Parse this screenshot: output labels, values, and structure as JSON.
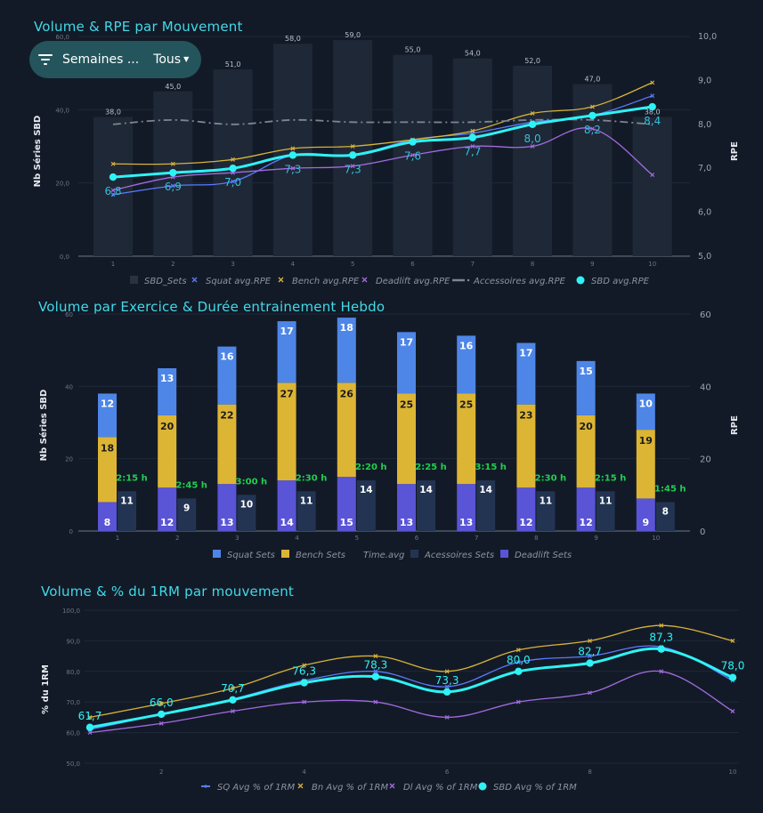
{
  "filter": {
    "label": "Semaines ...",
    "value": "Tous"
  },
  "chart_data": [
    {
      "id": "c1",
      "type": "bar+line",
      "title": "Volume & RPE par Mouvement",
      "ylabel_left": "Nb Séries SBD",
      "ylabel_right": "RPE",
      "ylim_left": [
        0,
        60
      ],
      "ylim_right": [
        5,
        10
      ],
      "yticks_left": [
        "0,0",
        "20,0",
        "40,0",
        "60,0"
      ],
      "yticks_right": [
        "5,0",
        "6,0",
        "7,0",
        "8,0",
        "9,0",
        "10,0"
      ],
      "categories": [
        "1",
        "2",
        "3",
        "4",
        "5",
        "6",
        "7",
        "8",
        "9",
        "10"
      ],
      "bars": {
        "name": "SBD_Sets",
        "values": [
          38,
          45,
          51,
          58,
          59,
          55,
          54,
          52,
          47,
          38
        ],
        "labels": [
          "38,0",
          "45,0",
          "51,0",
          "58,0",
          "59,0",
          "55,0",
          "54,0",
          "52,0",
          "47,0",
          "38,0"
        ]
      },
      "lines": [
        {
          "name": "Squat avg.RPE",
          "color": "#5b7bff",
          "values": [
            6.4,
            6.6,
            6.7,
            7.3,
            7.3,
            7.65,
            7.8,
            8.05,
            8.2,
            8.65
          ]
        },
        {
          "name": "Bench avg.RPE",
          "color": "#d7b43a",
          "values": [
            7.1,
            7.1,
            7.2,
            7.45,
            7.5,
            7.65,
            7.85,
            8.25,
            8.4,
            8.95
          ]
        },
        {
          "name": "Deadlift avg.RPE",
          "color": "#a26be0",
          "values": [
            6.5,
            6.8,
            6.9,
            7.0,
            7.05,
            7.3,
            7.5,
            7.5,
            7.9,
            6.85
          ]
        },
        {
          "name": "Accessoires avg.RPE",
          "color": "#7d8590",
          "values": [
            8.0,
            8.1,
            8.0,
            8.1,
            8.05,
            8.05,
            8.05,
            8.1,
            8.1,
            8.0
          ]
        },
        {
          "name": "SBD avg.RPE",
          "color": "#2ff2f5",
          "values": [
            6.8,
            6.9,
            7.0,
            7.3,
            7.3,
            7.6,
            7.7,
            8.0,
            8.2,
            8.4
          ],
          "labels": [
            "6,8",
            "6,9",
            "7,0",
            "7,3",
            "7,3",
            "7,6",
            "7,7",
            "8,0",
            "8,2",
            "8,4"
          ]
        }
      ]
    },
    {
      "id": "c2",
      "type": "stacked-bar",
      "title": "Volume par Exercice & Durée entrainement Hebdo",
      "ylabel_left": "Nb Séries SBD",
      "ylabel_right": "RPE",
      "ylim_left": [
        0,
        60
      ],
      "ylim_right": [
        0,
        60
      ],
      "yticks_left": [
        "0",
        "20",
        "40",
        "60"
      ],
      "yticks_right": [
        "0",
        "20",
        "40",
        "60"
      ],
      "categories": [
        "1",
        "2",
        "3",
        "4",
        "5",
        "6",
        "7",
        "8",
        "9",
        "10"
      ],
      "stacks": [
        {
          "name": "Deadlift Sets",
          "color": "#5a54d6",
          "values": [
            8,
            12,
            13,
            14,
            15,
            13,
            13,
            12,
            12,
            9
          ]
        },
        {
          "name": "Bench Sets",
          "color": "#ddb534",
          "values": [
            18,
            20,
            22,
            27,
            26,
            25,
            25,
            23,
            20,
            19
          ]
        },
        {
          "name": "Squat Sets",
          "color": "#4e86e8",
          "values": [
            12,
            13,
            16,
            17,
            18,
            17,
            16,
            17,
            15,
            10
          ]
        }
      ],
      "accessoires": {
        "name": "Acessoires Sets",
        "color": "#233453",
        "values": [
          11,
          9,
          10,
          11,
          14,
          14,
          14,
          11,
          11,
          8
        ]
      },
      "time": {
        "name": "Time.avg",
        "labels": [
          "2:15 h",
          "2:45 h",
          "3:00 h",
          "2:30 h",
          "2:20 h",
          "2:25 h",
          "3:15 h",
          "2:30 h",
          "2:15 h",
          "1:45 h"
        ]
      }
    },
    {
      "id": "c3",
      "type": "line",
      "title": "Volume & % du 1RM par mouvement",
      "ylabel": "% du 1RM",
      "ylim": [
        50,
        100
      ],
      "xlim": [
        1,
        10
      ],
      "yticks": [
        "50,0",
        "60,0",
        "70,0",
        "80,0",
        "90,0",
        "100,0"
      ],
      "xticks": [
        "2",
        "4",
        "6",
        "8",
        "10"
      ],
      "x": [
        1,
        2,
        3,
        4,
        5,
        6,
        7,
        8,
        9,
        10
      ],
      "series": [
        {
          "name": "SQ Avg % of 1RM",
          "color": "#5b7bff",
          "values": [
            61,
            66,
            71,
            77,
            80,
            75,
            83,
            85,
            88,
            77
          ]
        },
        {
          "name": "Bn Avg % of 1RM",
          "color": "#d7b43a",
          "values": [
            65,
            69.5,
            74.5,
            82,
            85,
            80,
            87,
            90,
            95,
            90
          ]
        },
        {
          "name": "Dl Avg % of 1RM",
          "color": "#a26be0",
          "values": [
            60,
            63,
            67,
            70,
            70,
            65,
            70,
            73,
            80,
            67
          ]
        },
        {
          "name": "SBD Avg % of 1RM",
          "color": "#2ff2f5",
          "values": [
            61.7,
            66.0,
            70.7,
            76.3,
            78.3,
            73.3,
            80.0,
            82.7,
            87.3,
            78.0
          ],
          "labels": [
            "61,7",
            "66,0",
            "70,7",
            "76,3",
            "78,3",
            "73,3",
            "80,0",
            "82,7",
            "87,3",
            "78,0"
          ]
        }
      ]
    }
  ]
}
